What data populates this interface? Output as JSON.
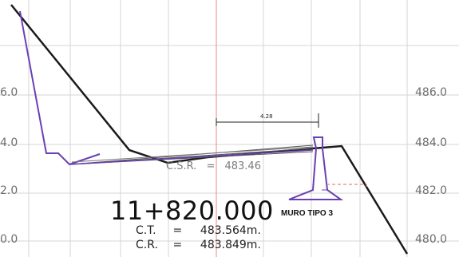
{
  "elevation_labels": {
    "left": [
      "6.0",
      "4.0",
      "2.0",
      "0.0"
    ],
    "right": [
      "486.0",
      "484.0",
      "482.0",
      "480.0"
    ]
  },
  "station": "11+820.000",
  "wall_label": "MURO TIPO 3",
  "dimension_label": "4.28",
  "subgrade": {
    "key": "C.S.R.",
    "eq": "=",
    "value": "483.46"
  },
  "levels": [
    {
      "key": "C.T.",
      "eq": "=",
      "value": "483.564m."
    },
    {
      "key": "C.R.",
      "eq": "=",
      "value": "483.849m."
    }
  ],
  "colors": {
    "grid": "#d4d4d4",
    "axis_line": "#e88a8a",
    "terrain": "#1a1a1a",
    "design": "#6a3fb3",
    "dashed": "#e06a6a",
    "label": "#6e6e6e"
  }
}
